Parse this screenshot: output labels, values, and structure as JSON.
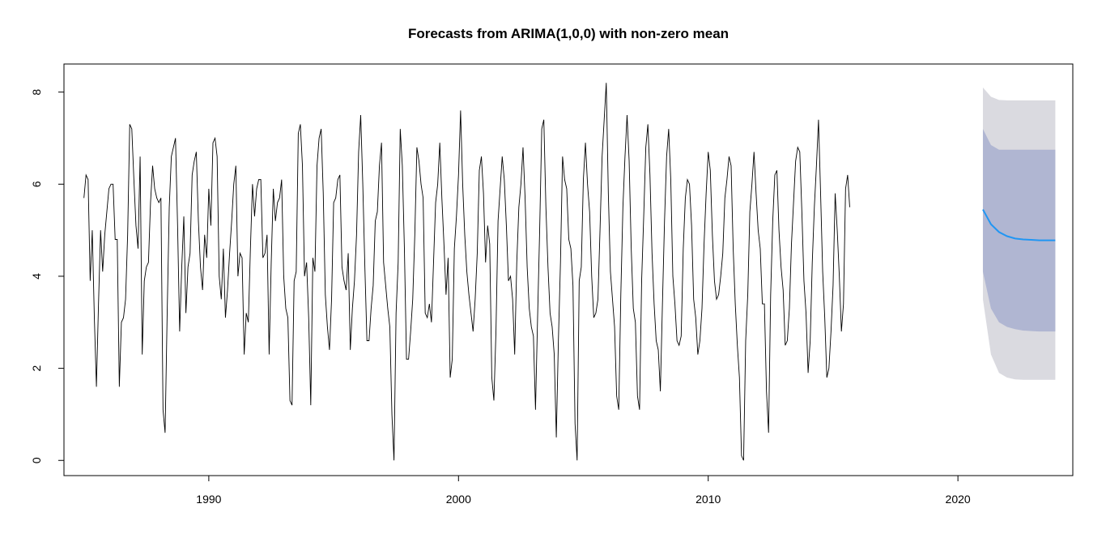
{
  "chart_data": {
    "type": "line",
    "title": "Forecasts from ARIMA(1,0,0) with non-zero mean",
    "xlabel": "",
    "ylabel": "",
    "xlim": [
      1985,
      2024
    ],
    "ylim": [
      0,
      8.3
    ],
    "x_ticks": [
      1990,
      2000,
      2010,
      2020
    ],
    "y_ticks": [
      0,
      2,
      4,
      6,
      8
    ],
    "grid": false,
    "legend": "none",
    "colors": {
      "history": "#000000",
      "forecast_mean": "#2196f3",
      "band_80": "#b0b6d2",
      "band_95": "#dadae0"
    },
    "history": {
      "x_start": 1985.0,
      "step": 0.0833333,
      "values": [
        5.7,
        6.2,
        6.1,
        3.9,
        5.0,
        3.1,
        1.6,
        3.4,
        5.0,
        4.1,
        4.9,
        5.4,
        5.9,
        6.0,
        6.0,
        4.8,
        4.8,
        1.6,
        3.0,
        3.1,
        3.5,
        4.9,
        7.3,
        7.2,
        6.1,
        5.1,
        4.6,
        6.6,
        2.3,
        3.9,
        4.2,
        4.3,
        5.6,
        6.4,
        5.9,
        5.7,
        5.6,
        5.7,
        1.1,
        0.6,
        3.2,
        5.5,
        6.6,
        6.8,
        7.0,
        5.1,
        2.8,
        4.2,
        5.3,
        3.2,
        4.2,
        4.5,
        6.2,
        6.5,
        6.7,
        5.2,
        4.2,
        3.7,
        4.9,
        4.4,
        5.9,
        5.1,
        6.9,
        7.0,
        6.6,
        4.0,
        3.5,
        4.6,
        3.1,
        3.7,
        4.5,
        5.2,
        6.0,
        6.4,
        4.0,
        4.5,
        4.4,
        2.3,
        3.2,
        3.0,
        4.6,
        6.0,
        5.3,
        5.9,
        6.1,
        6.1,
        4.4,
        4.5,
        4.9,
        2.3,
        4.3,
        5.9,
        5.2,
        5.6,
        5.7,
        6.1,
        4.0,
        3.3,
        3.1,
        1.3,
        1.2,
        3.9,
        4.1,
        7.1,
        7.3,
        6.4,
        4.0,
        4.3,
        3.1,
        1.2,
        4.4,
        4.1,
        6.4,
        7.0,
        7.2,
        5.8,
        3.6,
        2.9,
        2.4,
        3.5,
        5.6,
        5.7,
        6.1,
        6.2,
        4.2,
        3.9,
        3.7,
        4.5,
        2.4,
        3.3,
        3.9,
        4.9,
        6.7,
        7.5,
        6.0,
        4.2,
        2.6,
        2.6,
        3.3,
        3.8,
        5.2,
        5.4,
        6.4,
        6.9,
        4.3,
        3.8,
        3.3,
        2.9,
        1.0,
        0.0,
        3.2,
        4.3,
        7.2,
        6.4,
        4.6,
        2.2,
        2.2,
        2.8,
        3.5,
        4.9,
        6.8,
        6.5,
        6.0,
        5.7,
        3.2,
        3.1,
        3.4,
        3.0,
        4.3,
        5.6,
        6.0,
        6.9,
        5.7,
        4.7,
        3.6,
        4.4,
        1.8,
        2.2,
        4.6,
        5.3,
        6.2,
        7.6,
        6.0,
        4.9,
        4.1,
        3.6,
        3.2,
        2.8,
        3.5,
        4.5,
        6.3,
        6.6,
        5.8,
        4.3,
        5.1,
        4.7,
        1.8,
        1.3,
        2.8,
        5.2,
        5.9,
        6.6,
        6.1,
        5.1,
        3.9,
        4.0,
        3.5,
        2.3,
        4.3,
        5.5,
        6.0,
        6.8,
        5.7,
        4.2,
        3.3,
        2.9,
        2.7,
        1.1,
        3.1,
        5.0,
        7.2,
        7.4,
        5.5,
        4.2,
        3.2,
        2.9,
        2.3,
        0.5,
        2.6,
        4.3,
        6.6,
        6.1,
        5.9,
        4.8,
        4.6,
        3.8,
        0.8,
        0.0,
        3.9,
        4.2,
        6.1,
        6.9,
        6.0,
        5.4,
        4.0,
        3.1,
        3.2,
        3.5,
        5.0,
        6.6,
        7.4,
        8.2,
        5.8,
        4.1,
        3.5,
        2.9,
        1.4,
        1.1,
        3.6,
        5.5,
        6.6,
        7.5,
        6.5,
        4.6,
        3.3,
        3.0,
        1.4,
        1.1,
        3.9,
        5.3,
        6.8,
        7.3,
        6.2,
        4.5,
        3.4,
        2.6,
        2.4,
        1.5,
        3.4,
        5.2,
        6.6,
        7.2,
        6.1,
        4.0,
        3.4,
        2.6,
        2.5,
        2.7,
        4.6,
        5.7,
        6.1,
        6.0,
        5.1,
        3.5,
        3.1,
        2.3,
        2.6,
        3.3,
        4.7,
        5.8,
        6.7,
        6.3,
        4.9,
        3.9,
        3.5,
        3.6,
        4.0,
        4.5,
        5.7,
        6.1,
        6.6,
        6.4,
        4.6,
        3.4,
        2.5,
        1.8,
        0.1,
        0.0,
        2.6,
        3.6,
        5.4,
        6.0,
        6.7,
        5.8,
        5.0,
        4.6,
        3.4,
        3.4,
        1.5,
        0.6,
        3.6,
        5.2,
        6.2,
        6.3,
        5.0,
        4.2,
        3.7,
        2.5,
        2.6,
        3.3,
        4.7,
        5.6,
        6.5,
        6.8,
        6.7,
        5.4,
        3.9,
        3.2,
        1.9,
        2.6,
        4.3,
        5.5,
        6.4,
        7.4,
        5.8,
        4.1,
        3.1,
        1.8,
        2.0,
        2.8,
        3.8,
        5.8,
        5.0,
        4.0,
        2.8,
        3.4,
        5.9,
        6.2,
        5.5
      ]
    },
    "forecast": {
      "x_start": 2021.0,
      "x_end": 2023.9,
      "mean": [
        5.45,
        5.13,
        4.96,
        4.87,
        4.82,
        4.8,
        4.79,
        4.78,
        4.78,
        4.78
      ],
      "lo80": [
        4.1,
        3.3,
        3.0,
        2.9,
        2.85,
        2.82,
        2.81,
        2.8,
        2.8,
        2.8
      ],
      "hi80": [
        7.2,
        6.85,
        6.75,
        6.75,
        6.75,
        6.75,
        6.75,
        6.75,
        6.75,
        6.75
      ],
      "lo95": [
        3.5,
        2.3,
        1.9,
        1.8,
        1.76,
        1.75,
        1.75,
        1.75,
        1.75,
        1.75
      ],
      "hi95": [
        8.1,
        7.9,
        7.83,
        7.82,
        7.82,
        7.82,
        7.82,
        7.82,
        7.82,
        7.82
      ]
    }
  }
}
